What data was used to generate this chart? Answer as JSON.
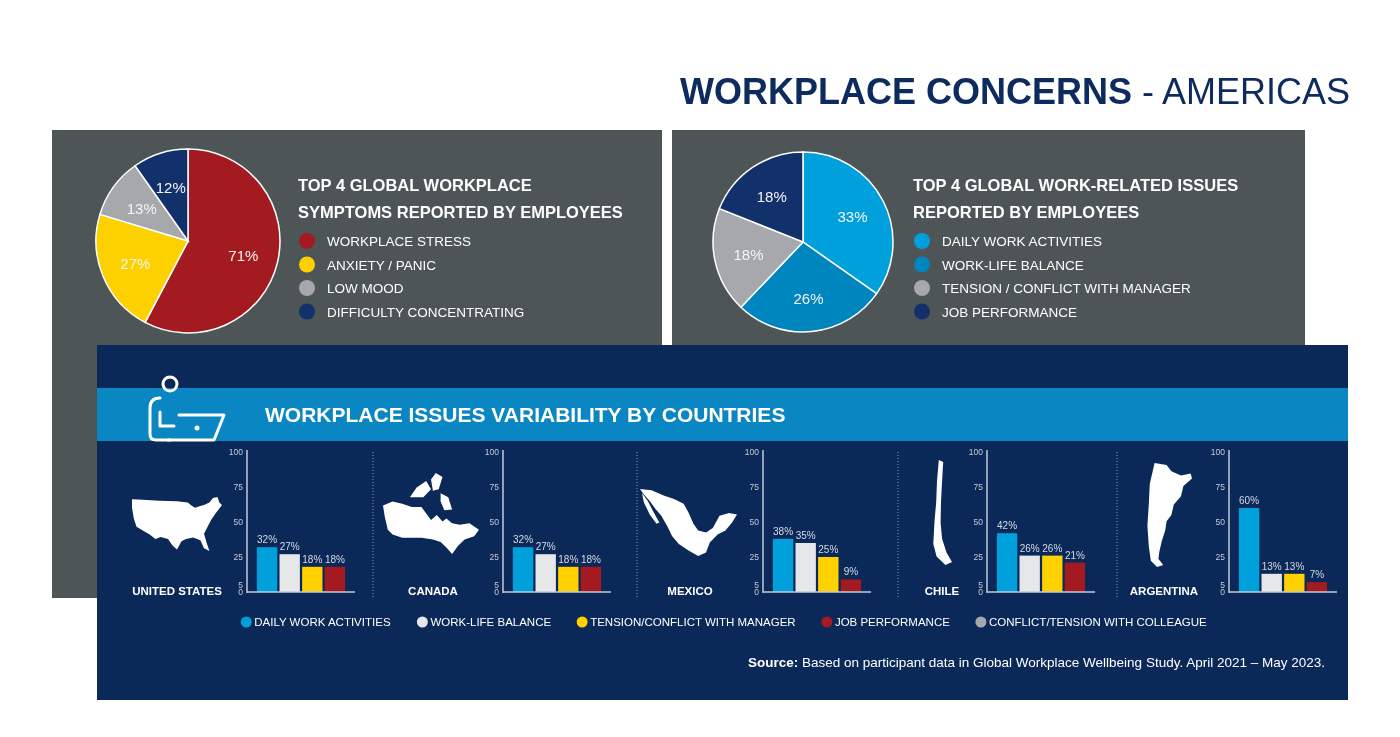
{
  "chart_data": [
    {
      "type": "other",
      "title": "WORKPLACE CONCERNS - AMERICAS"
    },
    {
      "type": "pie",
      "title": "TOP 4 GLOBAL WORKPLACE\nSYMPTOMS REPORTED BY EMPLOYEES",
      "categories": [
        "WORKPLACE STRESS",
        "ANXIETY / PANIC",
        "LOW MOOD",
        "DIFFICULTY CONCENTRATING"
      ],
      "values": [
        71,
        27,
        13,
        12
      ],
      "value_labels": [
        "71%",
        "27%",
        "13%",
        "12%"
      ],
      "colors": [
        "#a31b21",
        "#fdd000",
        "#a6a8ab",
        "#12306a"
      ],
      "legend": "right"
    },
    {
      "type": "pie",
      "title": "TOP 4 GLOBAL WORK-RELATED ISSUES\nREPORTED BY EMPLOYEES",
      "categories": [
        "DAILY WORK ACTIVITIES",
        "WORK-LIFE BALANCE",
        "TENSION / CONFLICT WITH MANAGER",
        "JOB PERFORMANCE"
      ],
      "values": [
        33,
        26,
        18,
        18
      ],
      "value_labels": [
        "33%",
        "26%",
        "18%",
        "18%"
      ],
      "colors": [
        "#00a0dd",
        "#0086bf",
        "#a6a8ab",
        "#12306a"
      ],
      "legend": "right"
    },
    {
      "type": "other",
      "title": "WORKPLACE ISSUES VARIABILITY BY COUNTRIES",
      "annotations": [
        "Source: Based on participant data in Global Workplace Wellbeing Study. April 2021 – May 2023."
      ]
    },
    {
      "type": "bar",
      "title": "UNITED STATES",
      "categories": [
        null
      ],
      "series": [
        {
          "name": "DAILY WORK ACTIVITIES",
          "color": "#00a0dd",
          "values": [
            32
          ],
          "value_labels": [
            "32%"
          ]
        },
        {
          "name": "WORK-LIFE BALANCE",
          "color": "#e6e7e8",
          "values": [
            27
          ],
          "value_labels": [
            "27%"
          ]
        },
        {
          "name": "TENSION/CONFLICT WITH MANAGER",
          "color": "#ffd100",
          "values": [
            18
          ],
          "value_labels": [
            "18%"
          ]
        },
        {
          "name": "JOB PERFORMANCE",
          "color": "#a31b21",
          "values": [
            18
          ],
          "value_labels": [
            "18%"
          ]
        },
        {
          "name": "CONFLICT/TENSION WITH COLLEAGUE",
          "color": "#a6a8ab",
          "values": [
            null
          ]
        }
      ],
      "ylim": [
        0,
        100
      ],
      "yticks": [
        0,
        5,
        25,
        50,
        75,
        100
      ],
      "legend": "bottom"
    },
    {
      "type": "bar",
      "title": "CANADA",
      "categories": [
        null
      ],
      "series": [
        {
          "color": "#00a0dd",
          "values": [
            32
          ],
          "value_labels": [
            "32%"
          ]
        },
        {
          "color": "#e6e7e8",
          "values": [
            27
          ],
          "value_labels": [
            "27%"
          ]
        },
        {
          "color": "#ffd100",
          "values": [
            18
          ],
          "value_labels": [
            "18%"
          ]
        },
        {
          "color": "#a31b21",
          "values": [
            18
          ],
          "value_labels": [
            "18%"
          ]
        }
      ],
      "ylim": [
        0,
        100
      ],
      "yticks": [
        0,
        5,
        25,
        50,
        75,
        100
      ]
    },
    {
      "type": "bar",
      "title": "MEXICO",
      "categories": [
        null
      ],
      "series": [
        {
          "color": "#00a0dd",
          "values": [
            38
          ],
          "value_labels": [
            "38%"
          ]
        },
        {
          "color": "#e6e7e8",
          "values": [
            35
          ],
          "value_labels": [
            "35%"
          ]
        },
        {
          "color": "#ffd100",
          "values": [
            25
          ],
          "value_labels": [
            "25%"
          ]
        },
        {
          "color": "#a31b21",
          "values": [
            9
          ],
          "value_labels": [
            "9%"
          ]
        }
      ],
      "ylim": [
        0,
        100
      ],
      "yticks": [
        0,
        5,
        25,
        50,
        75,
        100
      ]
    },
    {
      "type": "bar",
      "title": "CHILE",
      "categories": [
        null
      ],
      "series": [
        {
          "color": "#00a0dd",
          "values": [
            42
          ],
          "value_labels": [
            "42%"
          ]
        },
        {
          "color": "#e6e7e8",
          "values": [
            26
          ],
          "value_labels": [
            "26%"
          ]
        },
        {
          "color": "#ffd100",
          "values": [
            26
          ],
          "value_labels": [
            "26%"
          ]
        },
        {
          "color": "#a31b21",
          "values": [
            21
          ],
          "value_labels": [
            "21%"
          ]
        }
      ],
      "ylim": [
        0,
        100
      ],
      "yticks": [
        0,
        5,
        25,
        50,
        75,
        100
      ]
    },
    {
      "type": "bar",
      "title": "ARGENTINA",
      "categories": [
        null
      ],
      "series": [
        {
          "color": "#00a0dd",
          "values": [
            60
          ],
          "value_labels": [
            "60%"
          ]
        },
        {
          "color": "#e6e7e8",
          "values": [
            13
          ],
          "value_labels": [
            "13%"
          ]
        },
        {
          "color": "#ffd100",
          "values": [
            13
          ],
          "value_labels": [
            "13%"
          ]
        },
        {
          "color": "#a31b21",
          "values": [
            7
          ],
          "value_labels": [
            "7%"
          ]
        }
      ],
      "ylim": [
        0,
        100
      ],
      "yticks": [
        0,
        5,
        25,
        50,
        75,
        100
      ]
    }
  ]
}
